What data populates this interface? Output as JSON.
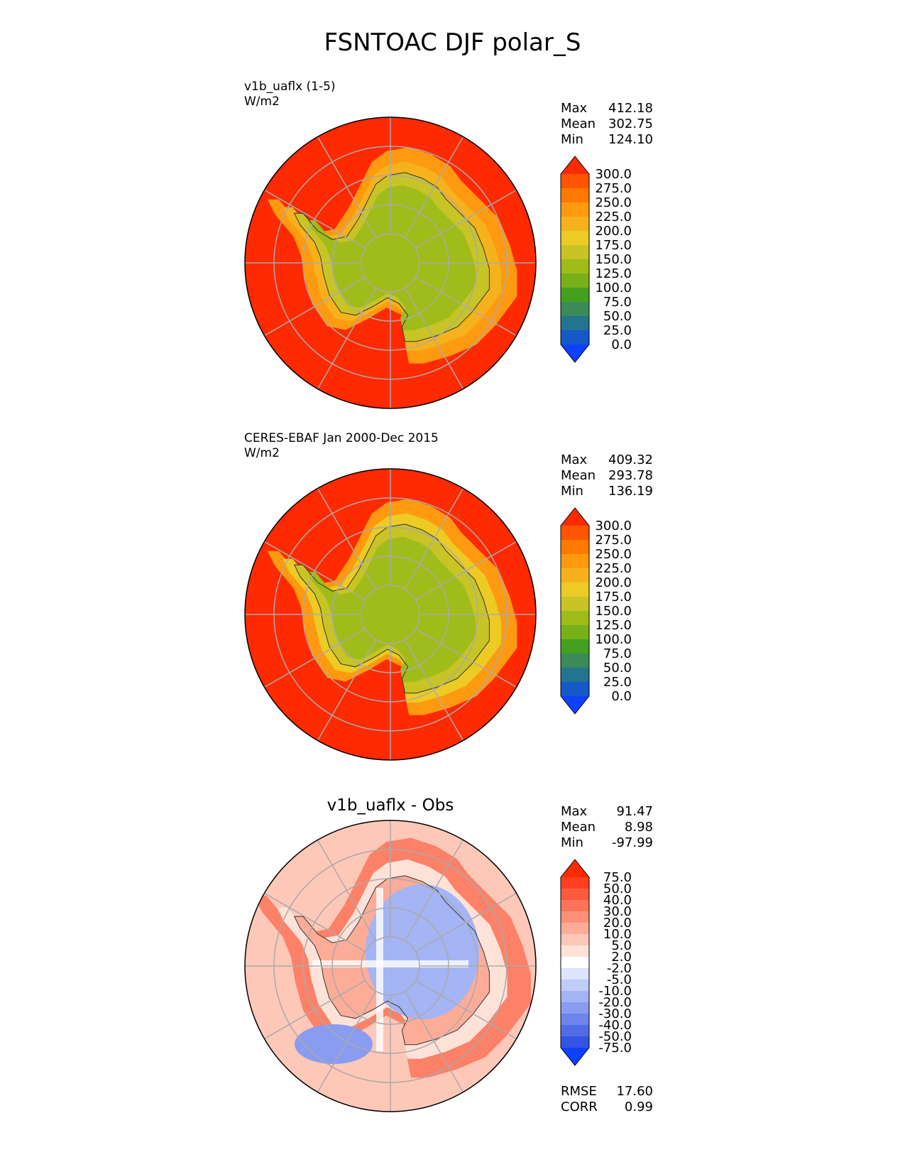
{
  "title": "FSNTOAC DJF polar_S",
  "chart_data": [
    {
      "type": "heatmap",
      "projection": "south-polar-stereographic",
      "title": "v1b_uaflx (1-5)",
      "units": "W/m2",
      "stats": {
        "max": "412.18",
        "mean": "302.75",
        "min": "124.10"
      },
      "stat_labels": {
        "max": "Max",
        "mean": "Mean",
        "min": "Min"
      },
      "colorbar": {
        "levels": [
          "300.0",
          "275.0",
          "250.0",
          "225.0",
          "200.0",
          "175.0",
          "150.0",
          "125.0",
          "100.0",
          "75.0",
          "50.0",
          "25.0",
          "0.0"
        ],
        "colors": [
          "#ff2a00",
          "#ff5500",
          "#ff7800",
          "#ff9a10",
          "#f6b21c",
          "#eccb24",
          "#c8c426",
          "#a0bc1a",
          "#78b01a",
          "#44a020",
          "#3b8a58",
          "#22758e",
          "#1558c8",
          "#1040ff"
        ],
        "extend": "both"
      },
      "field": {
        "ocean": "#ff2a00",
        "coast_ring": [
          "#ff9a10",
          "#f6b21c"
        ],
        "interior": "#a0bc1a",
        "plateau_edge": "#c8c426"
      }
    },
    {
      "type": "heatmap",
      "projection": "south-polar-stereographic",
      "title": "CERES-EBAF Jan 2000-Dec 2015",
      "units": "W/m2",
      "stats": {
        "max": "409.32",
        "mean": "293.78",
        "min": "136.19"
      },
      "stat_labels": {
        "max": "Max",
        "mean": "Mean",
        "min": "Min"
      },
      "colorbar": {
        "levels": [
          "300.0",
          "275.0",
          "250.0",
          "225.0",
          "200.0",
          "175.0",
          "150.0",
          "125.0",
          "100.0",
          "75.0",
          "50.0",
          "25.0",
          "0.0"
        ],
        "colors": [
          "#ff2a00",
          "#ff5500",
          "#ff7800",
          "#ff9a10",
          "#f6b21c",
          "#eccb24",
          "#c8c426",
          "#a0bc1a",
          "#78b01a",
          "#44a020",
          "#3b8a58",
          "#22758e",
          "#1558c8",
          "#1040ff"
        ],
        "extend": "both"
      },
      "field": {
        "ocean": "#ff2a00",
        "coast_ring": [
          "#ff9a10",
          "#eccb24"
        ],
        "interior": "#a0bc1a",
        "plateau_edge": "#c8c426"
      }
    },
    {
      "type": "heatmap",
      "projection": "south-polar-stereographic",
      "title": "v1b_uaflx - Obs",
      "stats": {
        "max": "91.47",
        "mean": "8.98",
        "min": "-97.99"
      },
      "stat_labels": {
        "max": "Max",
        "mean": "Mean",
        "min": "Min"
      },
      "metrics": {
        "rmse": "17.60",
        "corr": "0.99"
      },
      "metric_labels": {
        "rmse": "RMSE",
        "corr": "CORR"
      },
      "colorbar": {
        "levels": [
          "75.0",
          "50.0",
          "40.0",
          "30.0",
          "20.0",
          "10.0",
          "5.0",
          "2.0",
          "-2.0",
          "-5.0",
          "-10.0",
          "-20.0",
          "-30.0",
          "-40.0",
          "-50.0",
          "-75.0"
        ],
        "colors": [
          "#ff2a00",
          "#ff3f20",
          "#fb5a3e",
          "#fb7458",
          "#fc9078",
          "#fdac98",
          "#fec8b8",
          "#fee2d8",
          "#ffffff",
          "#dde4fb",
          "#c0ccf8",
          "#a4b4f4",
          "#8a9cf0",
          "#6e84ec",
          "#526ce8",
          "#3654e4",
          "#1040ff"
        ],
        "extend": "both"
      },
      "field": {
        "ocean": "#fec8b8",
        "ring": "#fb7458",
        "interior": "#a4b4f4"
      }
    }
  ]
}
